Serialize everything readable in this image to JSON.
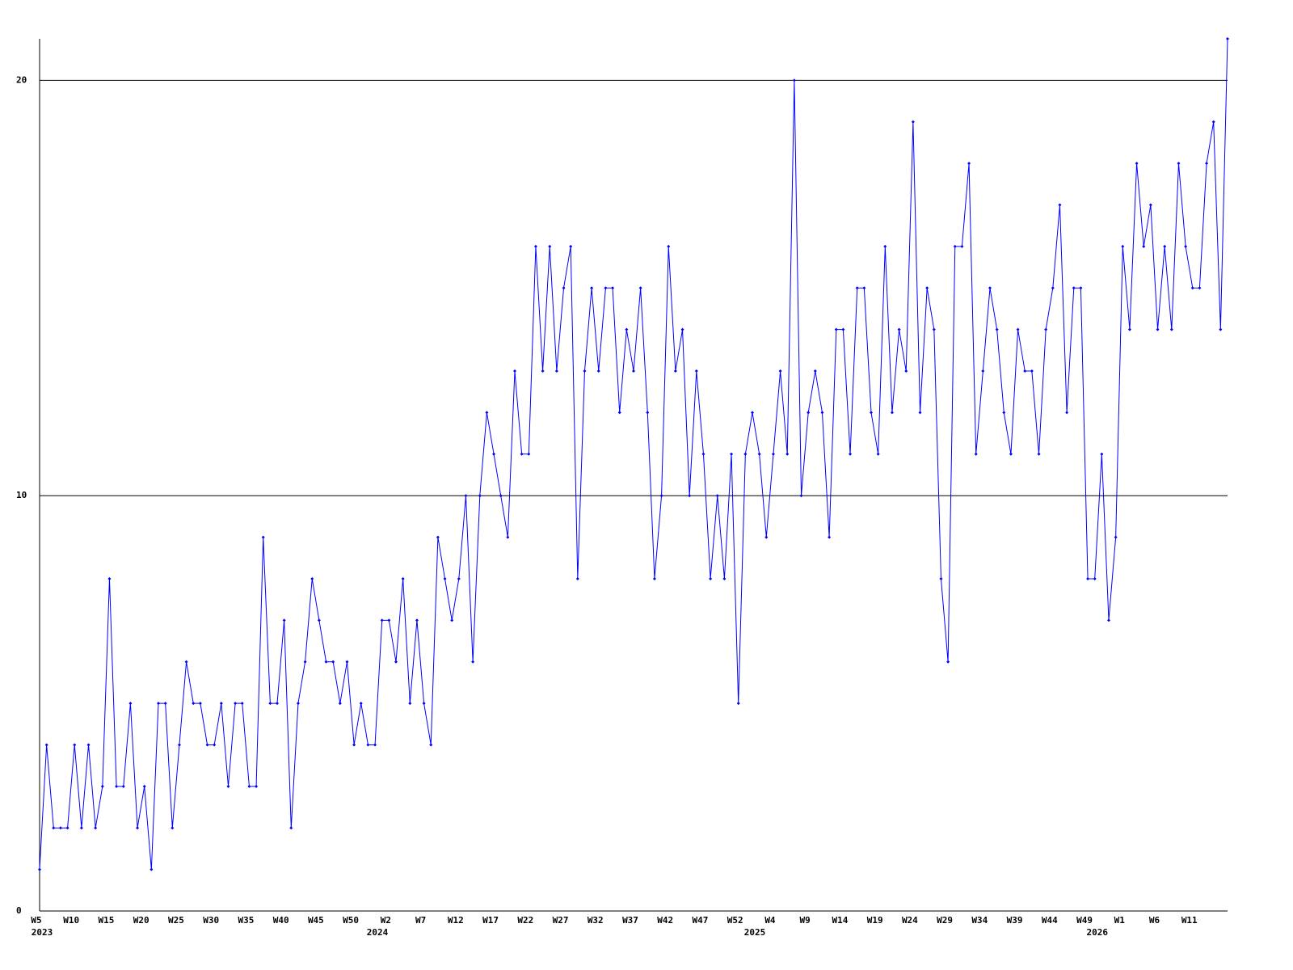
{
  "chart_data": {
    "type": "line",
    "categories": [
      "W5",
      null,
      null,
      null,
      null,
      "W10",
      null,
      null,
      null,
      null,
      "W15",
      null,
      null,
      null,
      null,
      "W20",
      null,
      null,
      null,
      null,
      "W25",
      null,
      null,
      null,
      null,
      "W30",
      null,
      null,
      null,
      null,
      "W35",
      null,
      null,
      null,
      null,
      "W40",
      null,
      null,
      null,
      null,
      "W45",
      null,
      null,
      null,
      null,
      "W50",
      null,
      null,
      null,
      null,
      "W2",
      null,
      null,
      null,
      null,
      "W7",
      null,
      null,
      null,
      null,
      "W12",
      null,
      null,
      null,
      null,
      "W17",
      null,
      null,
      null,
      null,
      "W22",
      null,
      null,
      null,
      null,
      "W27",
      null,
      null,
      null,
      null,
      "W32",
      null,
      null,
      null,
      null,
      "W37",
      null,
      null,
      null,
      null,
      "W42",
      null,
      null,
      null,
      null,
      "W47",
      null,
      null,
      null,
      null,
      "W52",
      null,
      null,
      null,
      null,
      "W4",
      null,
      null,
      null,
      null,
      "W9",
      null,
      null,
      null,
      null,
      "W14",
      null,
      null,
      null,
      null,
      "W19",
      null,
      null,
      null,
      null,
      "W24",
      null,
      null,
      null,
      null,
      "W29",
      null,
      null,
      null,
      null,
      "W34",
      null,
      null,
      null,
      null,
      "W39",
      null,
      null,
      null,
      null,
      "W44",
      null,
      null,
      null,
      null,
      "W49",
      null,
      null,
      null,
      null,
      "W1",
      null,
      null,
      null,
      null,
      "W6",
      null,
      null,
      null,
      null,
      "W11",
      null,
      null,
      null,
      null,
      null
    ],
    "years": [
      "2023",
      null,
      null,
      null,
      null,
      null,
      null,
      null,
      null,
      null,
      null,
      null,
      null,
      null,
      null,
      null,
      null,
      null,
      null,
      null,
      null,
      null,
      null,
      null,
      null,
      null,
      null,
      null,
      null,
      null,
      null,
      null,
      null,
      null,
      null,
      null,
      null,
      null,
      null,
      null,
      null,
      null,
      null,
      null,
      null,
      null,
      null,
      null,
      "2024",
      null,
      null,
      null,
      null,
      null,
      null,
      null,
      null,
      null,
      null,
      null,
      null,
      null,
      null,
      null,
      null,
      null,
      null,
      null,
      null,
      null,
      null,
      null,
      null,
      null,
      null,
      null,
      null,
      null,
      null,
      null,
      null,
      null,
      null,
      null,
      null,
      null,
      null,
      null,
      null,
      null,
      null,
      null,
      null,
      null,
      null,
      null,
      null,
      null,
      null,
      null,
      null,
      null,
      "2025",
      null,
      null,
      null,
      null,
      null,
      null,
      null,
      null,
      null,
      null,
      null,
      null,
      null,
      null,
      null,
      null,
      null,
      null,
      null,
      null,
      null,
      null,
      null,
      null,
      null,
      null,
      null,
      null,
      null,
      null,
      null,
      null,
      null,
      null,
      null,
      null,
      null,
      null,
      null,
      null,
      null,
      null,
      null,
      null,
      null,
      null,
      null,
      null,
      "2026",
      null,
      null,
      null,
      null,
      null,
      null,
      null,
      null,
      null,
      null,
      null,
      null,
      null,
      null,
      null
    ],
    "series": [
      {
        "color": "#0000ff",
        "values": [
          1,
          4,
          2,
          2,
          2,
          4,
          2,
          4,
          2,
          3,
          8,
          3,
          3,
          5,
          2,
          3,
          1,
          5,
          5,
          2,
          4,
          6,
          5,
          5,
          4,
          4,
          5,
          3,
          5,
          5,
          3,
          3,
          9,
          5,
          5,
          7,
          2,
          5,
          6,
          8,
          7,
          6,
          6,
          5,
          6,
          4,
          5,
          4,
          4,
          7,
          7,
          6,
          8,
          5,
          7,
          5,
          4,
          9,
          8,
          7,
          8,
          10,
          6,
          10,
          12,
          11,
          10,
          9,
          13,
          11,
          11,
          16,
          13,
          16,
          13,
          15,
          16,
          8,
          13,
          15,
          13,
          15,
          15,
          12,
          14,
          13,
          15,
          12,
          8,
          10,
          16,
          13,
          14,
          10,
          13,
          11,
          8,
          10,
          8,
          11,
          5,
          11,
          12,
          11,
          9,
          11,
          13,
          11,
          20,
          10,
          12,
          13,
          12,
          9,
          14,
          14,
          11,
          15,
          15,
          12,
          11,
          16,
          12,
          14,
          13,
          19,
          12,
          15,
          14,
          8,
          6,
          16,
          16,
          18,
          11,
          13,
          15,
          14,
          12,
          11,
          14,
          13,
          13,
          11,
          14,
          15,
          17,
          12,
          15,
          15,
          8,
          8,
          11,
          7,
          9,
          16,
          14,
          18,
          16,
          17,
          14,
          16,
          14,
          18,
          16,
          15,
          15,
          18,
          19,
          14,
          21
        ]
      }
    ],
    "ylim": [
      0,
      21
    ],
    "yticks": [
      0,
      10,
      20
    ],
    "grid": true
  }
}
